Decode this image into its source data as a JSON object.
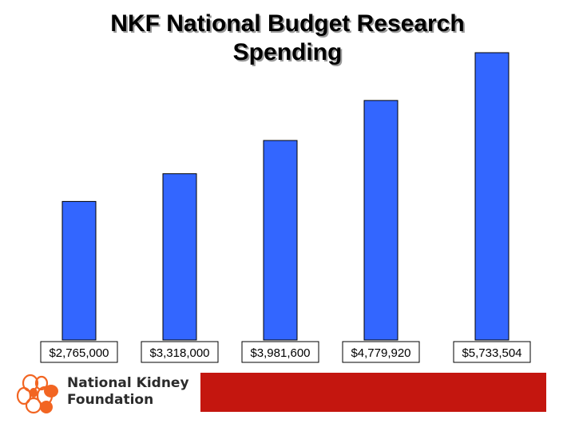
{
  "title": "NKF National Budget Research Spending",
  "colors": {
    "bar": "#3366ff",
    "footer_bar": "#c4160f",
    "logo_orange": "#f26522"
  },
  "logo": {
    "line1": "National Kidney",
    "line2": "Foundation"
  },
  "chart_data": {
    "type": "bar",
    "title": "NKF National Budget Research Spending",
    "categories": [
      "$2,765,000",
      "$3,318,000",
      "$3,981,600",
      "$4,779,920",
      "$5,733,504"
    ],
    "values": [
      2765000,
      3318000,
      3981600,
      4779920,
      5733504
    ],
    "ylim": [
      0,
      5733504
    ],
    "grid": false,
    "legend": "none"
  }
}
